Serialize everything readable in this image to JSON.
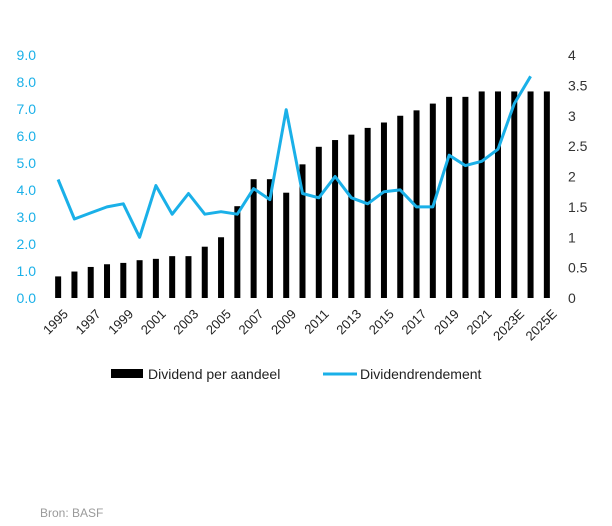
{
  "chart_data": {
    "type": "bar+line",
    "categories": [
      "1995",
      "1996",
      "1997",
      "1998",
      "1999",
      "2000",
      "2001",
      "2002",
      "2003",
      "2004",
      "2005",
      "2006",
      "2007",
      "2008",
      "2009",
      "2010",
      "2011",
      "2012",
      "2013",
      "2014",
      "2015",
      "2016",
      "2017",
      "2018",
      "2019",
      "2020",
      "2021",
      "2022",
      "2023E",
      "2024E",
      "2025E"
    ],
    "x_tick_labels": [
      "1995",
      "1997",
      "1999",
      "2001",
      "2003",
      "2005",
      "2007",
      "2009",
      "2011",
      "2013",
      "2015",
      "2017",
      "2019",
      "2021",
      "2023E",
      "2025E"
    ],
    "series": [
      {
        "name": "Dividend per aandeel",
        "type": "bar",
        "axis": "left",
        "color": "#000000",
        "values": [
          0.8,
          0.98,
          1.15,
          1.25,
          1.3,
          1.4,
          1.45,
          1.55,
          1.55,
          1.9,
          2.25,
          3.4,
          4.4,
          4.4,
          3.9,
          4.95,
          5.6,
          5.85,
          6.05,
          6.3,
          6.5,
          6.75,
          6.95,
          7.2,
          7.45,
          7.45,
          7.65,
          7.65,
          7.65,
          7.65,
          7.65
        ]
      },
      {
        "name": "Dividendrendement",
        "type": "line",
        "axis": "right",
        "color": "#1ab0e8",
        "values": [
          1.95,
          1.3,
          1.4,
          1.5,
          1.55,
          1.0,
          1.85,
          1.38,
          1.72,
          1.38,
          1.42,
          1.38,
          1.8,
          1.62,
          3.1,
          1.72,
          1.65,
          2.0,
          1.65,
          1.55,
          1.75,
          1.78,
          1.5,
          1.5,
          2.35,
          2.18,
          2.25,
          2.45,
          3.2,
          3.65,
          null
        ]
      }
    ],
    "y_left": {
      "min": 0,
      "max": 9,
      "ticks": [
        "0.0",
        "1.0",
        "2.0",
        "3.0",
        "4.0",
        "5.0",
        "6.0",
        "7.0",
        "8.0",
        "9.0"
      ],
      "color": "#1ab0e8"
    },
    "y_right": {
      "min": 0,
      "max": 4,
      "ticks": [
        "0",
        "0.5",
        "1",
        "1.5",
        "2",
        "2.5",
        "3",
        "3.5",
        "4"
      ]
    },
    "grid": false,
    "legend_position": "bottom"
  },
  "source": "Bron: BASF"
}
